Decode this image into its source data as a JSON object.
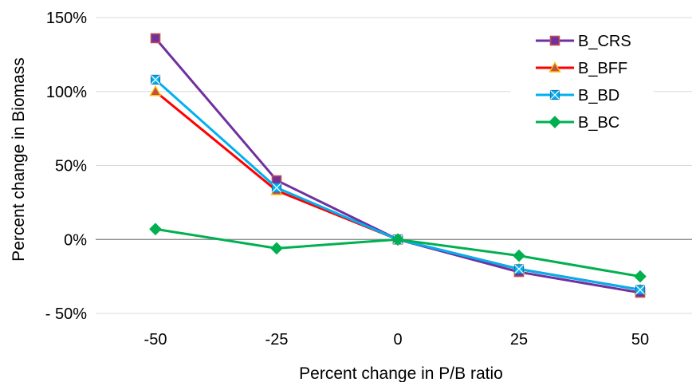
{
  "chart_data": {
    "type": "line",
    "x": [
      -50,
      -25,
      0,
      25,
      50
    ],
    "x_tick_labels": [
      "-50",
      "-25",
      "0",
      "25",
      "50"
    ],
    "xlabel": "Percent change in P/B ratio",
    "ylabel": "Percent change in Biomass",
    "ylim": [
      -50,
      150
    ],
    "y_ticks": [
      -50,
      0,
      50,
      100,
      150
    ],
    "y_tick_labels": [
      "- 50%",
      "0%",
      "50%",
      "100%",
      "150%"
    ],
    "grid": true,
    "legend_position": "top-right",
    "series": [
      {
        "name": "B_CRS",
        "color": "#7030a0",
        "marker": "square",
        "marker_fill": "#7030a0",
        "marker_stroke": "#c0504d",
        "values": [
          136,
          40,
          0,
          -22,
          -36
        ]
      },
      {
        "name": "B_BFF",
        "color": "#ff0000",
        "marker": "triangle",
        "marker_fill": "#c0504d",
        "marker_stroke": "#ffc000",
        "values": [
          100,
          33,
          0,
          -20,
          -34
        ]
      },
      {
        "name": "B_BD",
        "color": "#00b0f0",
        "marker": "x-square",
        "marker_fill": "#00b0f0",
        "marker_stroke": "#1f77b4",
        "values": [
          108,
          35,
          0,
          -20,
          -34
        ]
      },
      {
        "name": "B_BC",
        "color": "#00b050",
        "marker": "diamond",
        "marker_fill": "#00b050",
        "marker_stroke": "#00b050",
        "values": [
          7,
          -6,
          0,
          -11,
          -25
        ]
      }
    ]
  }
}
